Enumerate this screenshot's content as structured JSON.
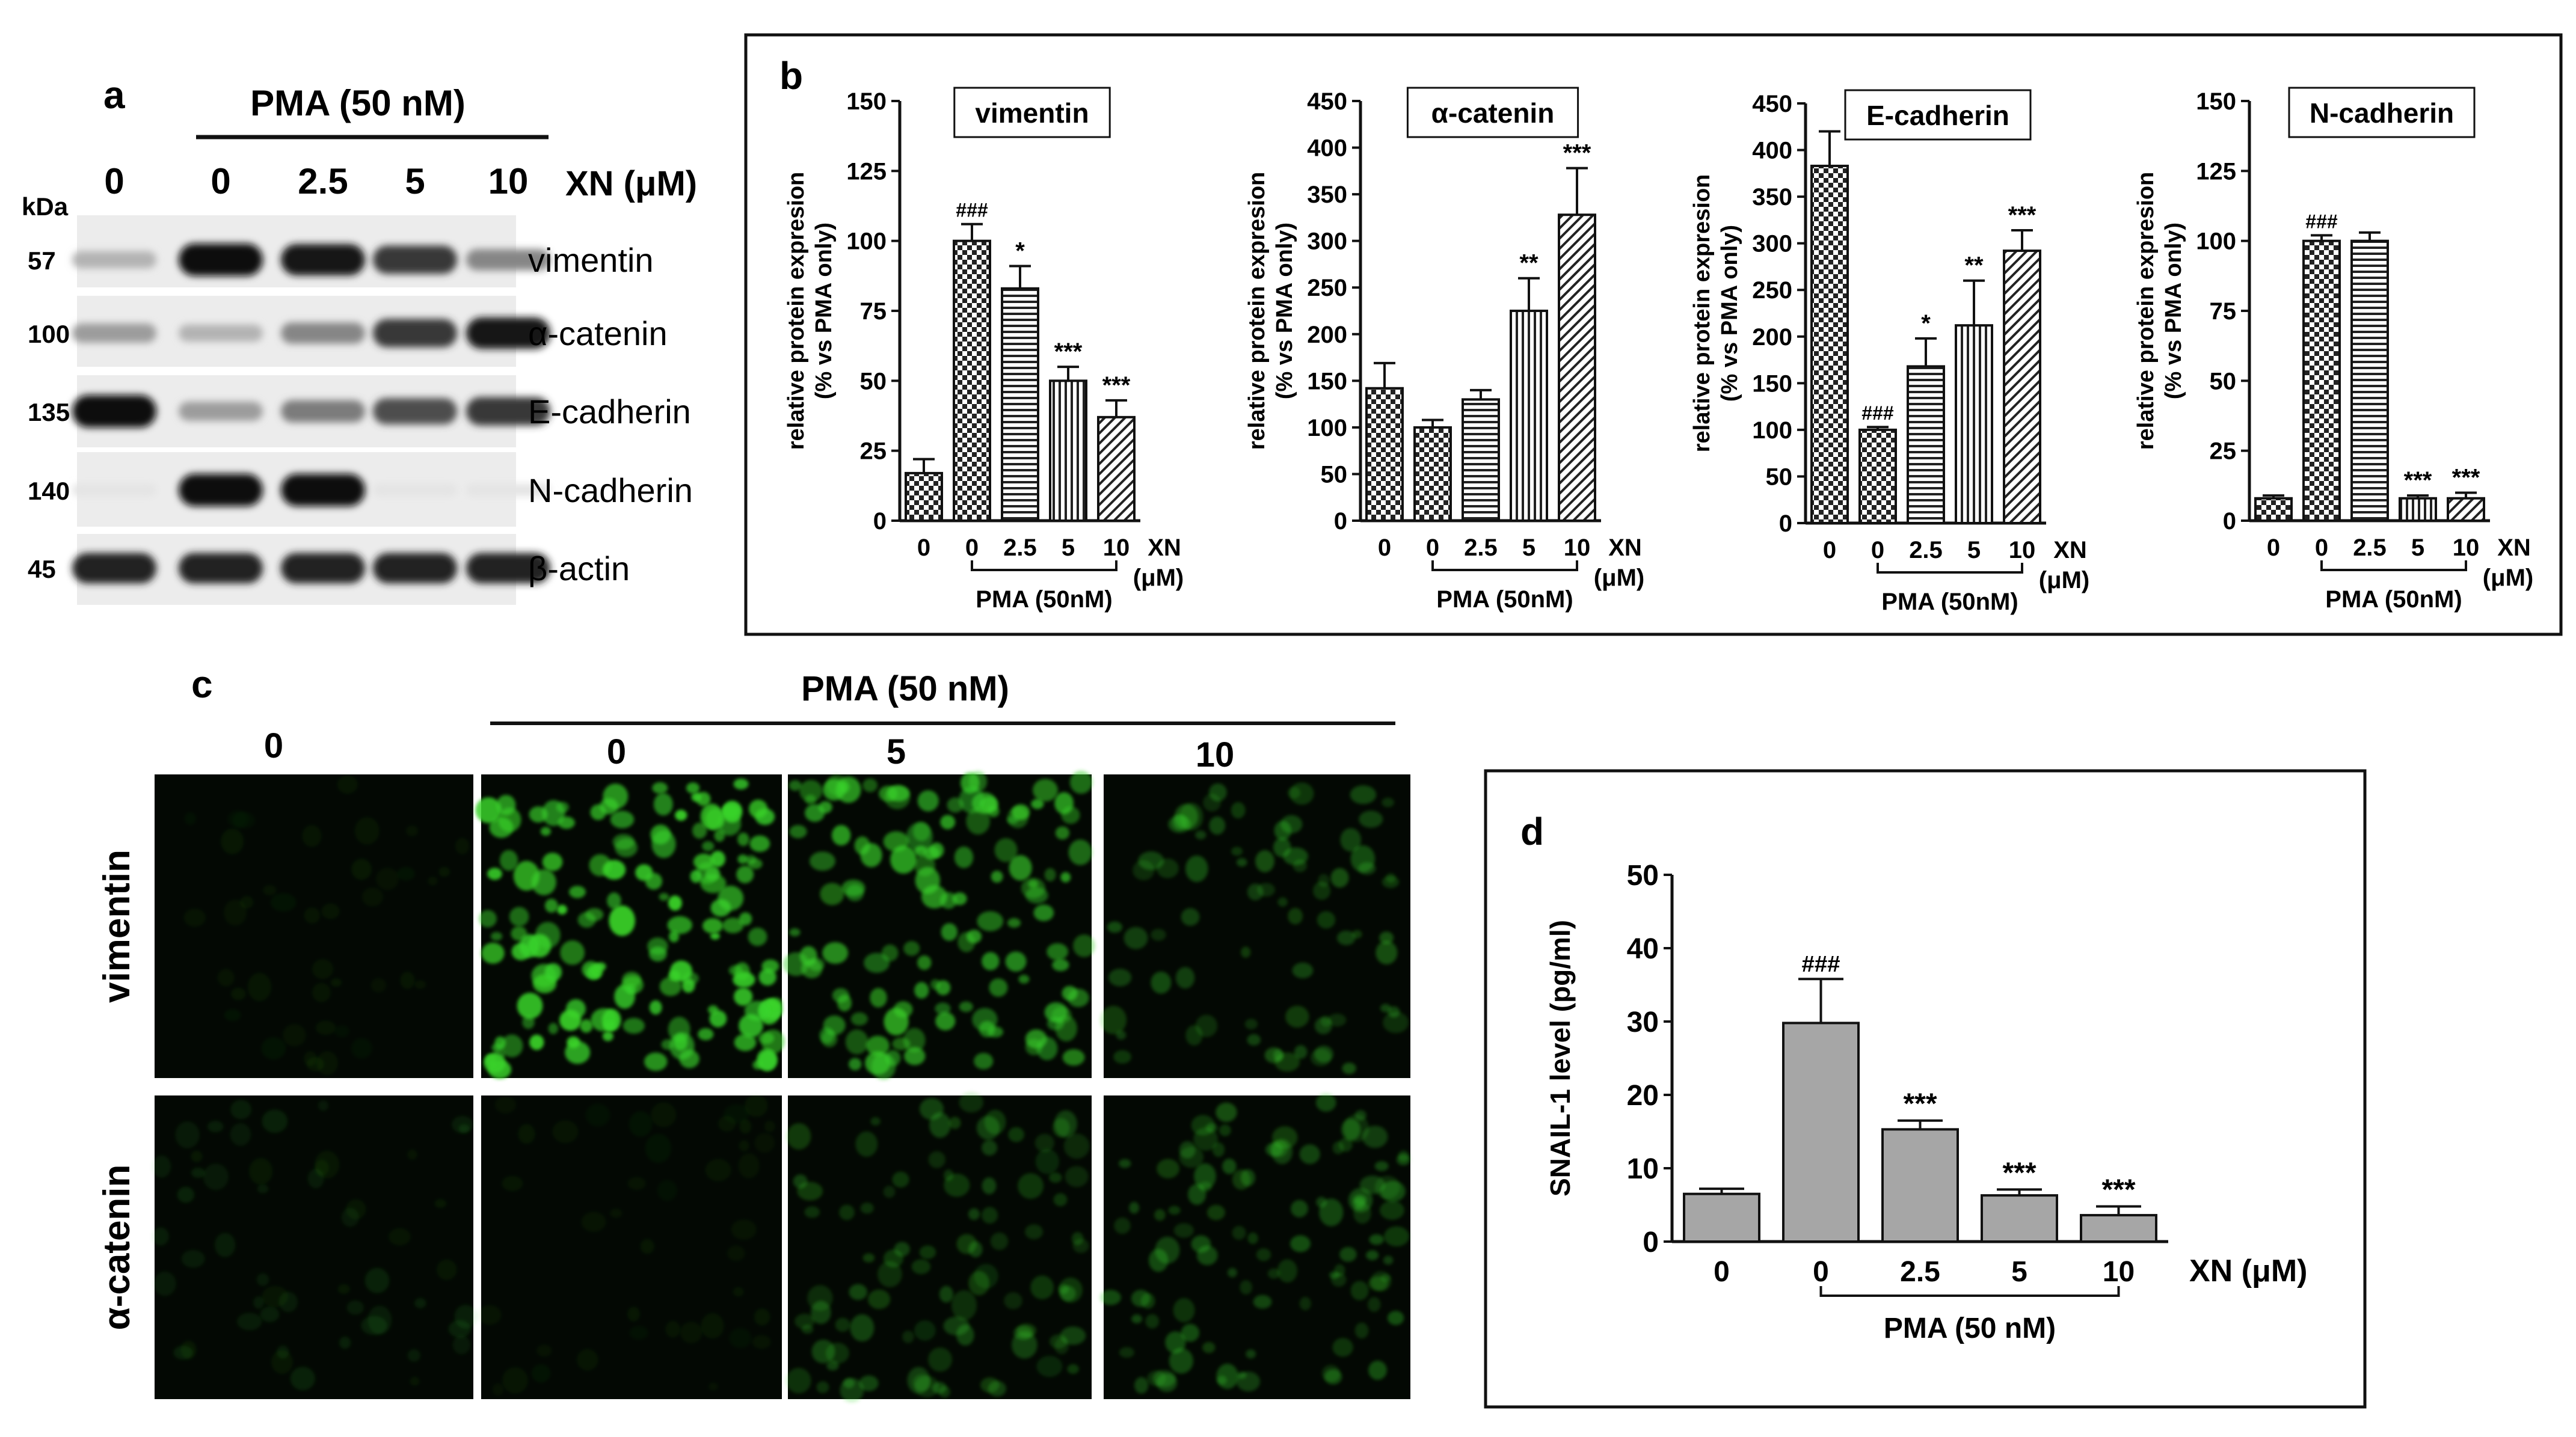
{
  "panels": {
    "a": "a",
    "b": "b",
    "c": "c",
    "d": "d"
  },
  "western_blot": {
    "pma_label": "PMA (50 nM)",
    "xn_label": "XN (μM)",
    "kda_label": "kDa",
    "lanes": [
      "0",
      "0",
      "2.5",
      "5",
      "10"
    ],
    "rows": [
      {
        "kda": "57",
        "protein": "vimentin",
        "intensity": [
          0.25,
          1.0,
          0.95,
          0.8,
          0.45
        ]
      },
      {
        "kda": "100",
        "protein": "α-catenin",
        "intensity": [
          0.35,
          0.25,
          0.45,
          0.8,
          0.95
        ]
      },
      {
        "kda": "135",
        "protein": "E-cadherin",
        "intensity": [
          1.0,
          0.35,
          0.5,
          0.7,
          0.8
        ]
      },
      {
        "kda": "140",
        "protein": "N-cadherin",
        "intensity": [
          0.03,
          1.0,
          1.0,
          0.03,
          0.03
        ]
      },
      {
        "kda": "45",
        "protein": "β-actin",
        "intensity": [
          0.9,
          0.9,
          0.9,
          0.9,
          0.9
        ]
      }
    ]
  },
  "chart_data": [
    {
      "type": "bar",
      "panel": "b",
      "title": "vimentin",
      "ylabel": "relative protein expresion (% vs PMA only)",
      "ylim": [
        0,
        150
      ],
      "yticks": [
        "0",
        "25",
        "50",
        "75",
        "100",
        "125",
        "150"
      ],
      "categories": [
        "0",
        "0",
        "2.5",
        "5",
        "10"
      ],
      "values": [
        17,
        100,
        83,
        50,
        37
      ],
      "errors": [
        5,
        6,
        8,
        5,
        6
      ],
      "annotations": [
        "",
        "###",
        "*",
        "***",
        "***"
      ],
      "patterns": [
        "checker",
        "checker",
        "hstripe",
        "vstripe",
        "diag"
      ],
      "xn_label": "XN (μM)",
      "pma_label": "PMA (50nM)"
    },
    {
      "type": "bar",
      "panel": "b",
      "title": "α-catenin",
      "ylabel": "relative protein expresion (% vs PMA only)",
      "ylim": [
        0,
        450
      ],
      "yticks": [
        "0",
        "50",
        "100",
        "150",
        "200",
        "250",
        "300",
        "350",
        "400",
        "450"
      ],
      "categories": [
        "0",
        "0",
        "2.5",
        "5",
        "10"
      ],
      "values": [
        142,
        100,
        130,
        225,
        328
      ],
      "errors": [
        27,
        8,
        10,
        35,
        50
      ],
      "annotations": [
        "",
        "",
        "",
        "**",
        "***"
      ],
      "patterns": [
        "checker",
        "checker",
        "hstripe",
        "vstripe",
        "diag"
      ],
      "xn_label": "XN (μM)",
      "pma_label": "PMA (50nM)"
    },
    {
      "type": "bar",
      "panel": "b",
      "title": "E-cadherin",
      "ylabel": "relative protein expresion (% vs PMA only)",
      "ylim": [
        0,
        450
      ],
      "yticks": [
        "0",
        "50",
        "100",
        "150",
        "200",
        "250",
        "300",
        "350",
        "400",
        "450"
      ],
      "categories": [
        "0",
        "0",
        "2.5",
        "5",
        "10"
      ],
      "values": [
        383,
        100,
        168,
        212,
        292
      ],
      "errors": [
        37,
        3,
        30,
        48,
        22
      ],
      "annotations": [
        "",
        "###",
        "*",
        "**",
        "***"
      ],
      "patterns": [
        "checker",
        "checker",
        "hstripe",
        "vstripe",
        "diag"
      ],
      "xn_label": "XN (μM)",
      "pma_label": "PMA (50nM)"
    },
    {
      "type": "bar",
      "panel": "b",
      "title": "N-cadherin",
      "ylabel": "relative protein expresion (% vs PMA only)",
      "ylim": [
        0,
        150
      ],
      "yticks": [
        "0",
        "25",
        "50",
        "75",
        "100",
        "125",
        "150"
      ],
      "categories": [
        "0",
        "0",
        "2.5",
        "5",
        "10"
      ],
      "values": [
        8,
        100,
        100,
        8,
        8
      ],
      "errors": [
        1,
        2,
        3,
        1,
        2
      ],
      "annotations": [
        "",
        "###",
        "",
        "***",
        "***"
      ],
      "patterns": [
        "checker",
        "checker",
        "hstripe",
        "vstripe",
        "diag"
      ],
      "xn_label": "XN (μM)",
      "pma_label": "PMA (50nM)"
    },
    {
      "type": "bar",
      "panel": "d",
      "title": "",
      "ylabel": "SNAIL-1 level (pg/ml)",
      "ylim": [
        0,
        50
      ],
      "yticks": [
        "0",
        "10",
        "20",
        "30",
        "40",
        "50"
      ],
      "categories": [
        "0",
        "0",
        "2.5",
        "5",
        "10"
      ],
      "values": [
        6.5,
        29.8,
        15.3,
        6.3,
        3.6
      ],
      "errors": [
        0.7,
        6,
        1.2,
        0.8,
        1.2
      ],
      "annotations": [
        "",
        "###",
        "***",
        "***",
        "***"
      ],
      "color": "#a6a6a6",
      "xn_label": "XN (μM)",
      "pma_label": "PMA (50 nM)"
    }
  ],
  "microscopy": {
    "pma_label": "PMA (50 nM)",
    "columns": [
      "0",
      "0",
      "5",
      "10"
    ],
    "rows": [
      {
        "label": "vimentin",
        "density": [
          0.0,
          1.0,
          0.75,
          0.3
        ]
      },
      {
        "label": "α-catenin",
        "density": [
          0.1,
          0.0,
          0.45,
          0.55
        ]
      }
    ],
    "fluor_color": "#39d42a"
  }
}
